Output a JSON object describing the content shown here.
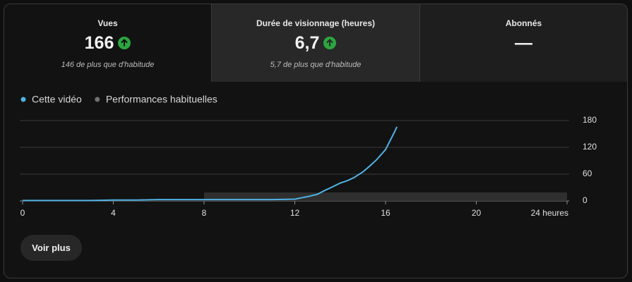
{
  "metrics": [
    {
      "label": "Vues",
      "value": "166",
      "note": "146 de plus que d'habitude"
    },
    {
      "label": "Durée de visionnage (heures)",
      "value": "6,7",
      "note": "5,7 de plus que d'habitude"
    },
    {
      "label": "Abonnés",
      "value": "—"
    }
  ],
  "chart_data": {
    "type": "line",
    "series": [
      {
        "name": "Cette vidéo",
        "color": "#4fb3e4",
        "type": "line",
        "x": [
          0,
          1,
          2,
          3,
          4,
          5,
          6,
          7,
          8,
          9,
          10,
          11,
          12,
          12.3,
          12.6,
          13,
          13.3,
          13.6,
          14,
          14.3,
          14.6,
          15,
          15.3,
          15.6,
          16,
          16.2,
          16.4,
          16.5
        ],
        "values": [
          1,
          1,
          1,
          1,
          2,
          2,
          3,
          3,
          3,
          3,
          3,
          3,
          4,
          7,
          10,
          15,
          23,
          30,
          40,
          45,
          52,
          65,
          78,
          92,
          115,
          135,
          155,
          166
        ]
      },
      {
        "name": "Performances habituelles",
        "color": "#717171",
        "type": "area",
        "x": [
          0,
          4.5,
          4.5,
          8,
          8,
          24
        ],
        "values": [
          1,
          1,
          3,
          3,
          19,
          19
        ]
      }
    ],
    "xlim": [
      0,
      24
    ],
    "xticks": [
      0,
      4,
      8,
      12,
      16,
      20,
      {
        "value": 24,
        "label": "24 heures"
      }
    ],
    "ylim": [
      0,
      180
    ],
    "yticks": [
      0,
      60,
      120,
      180
    ],
    "grid": true
  },
  "button": "Voir plus"
}
